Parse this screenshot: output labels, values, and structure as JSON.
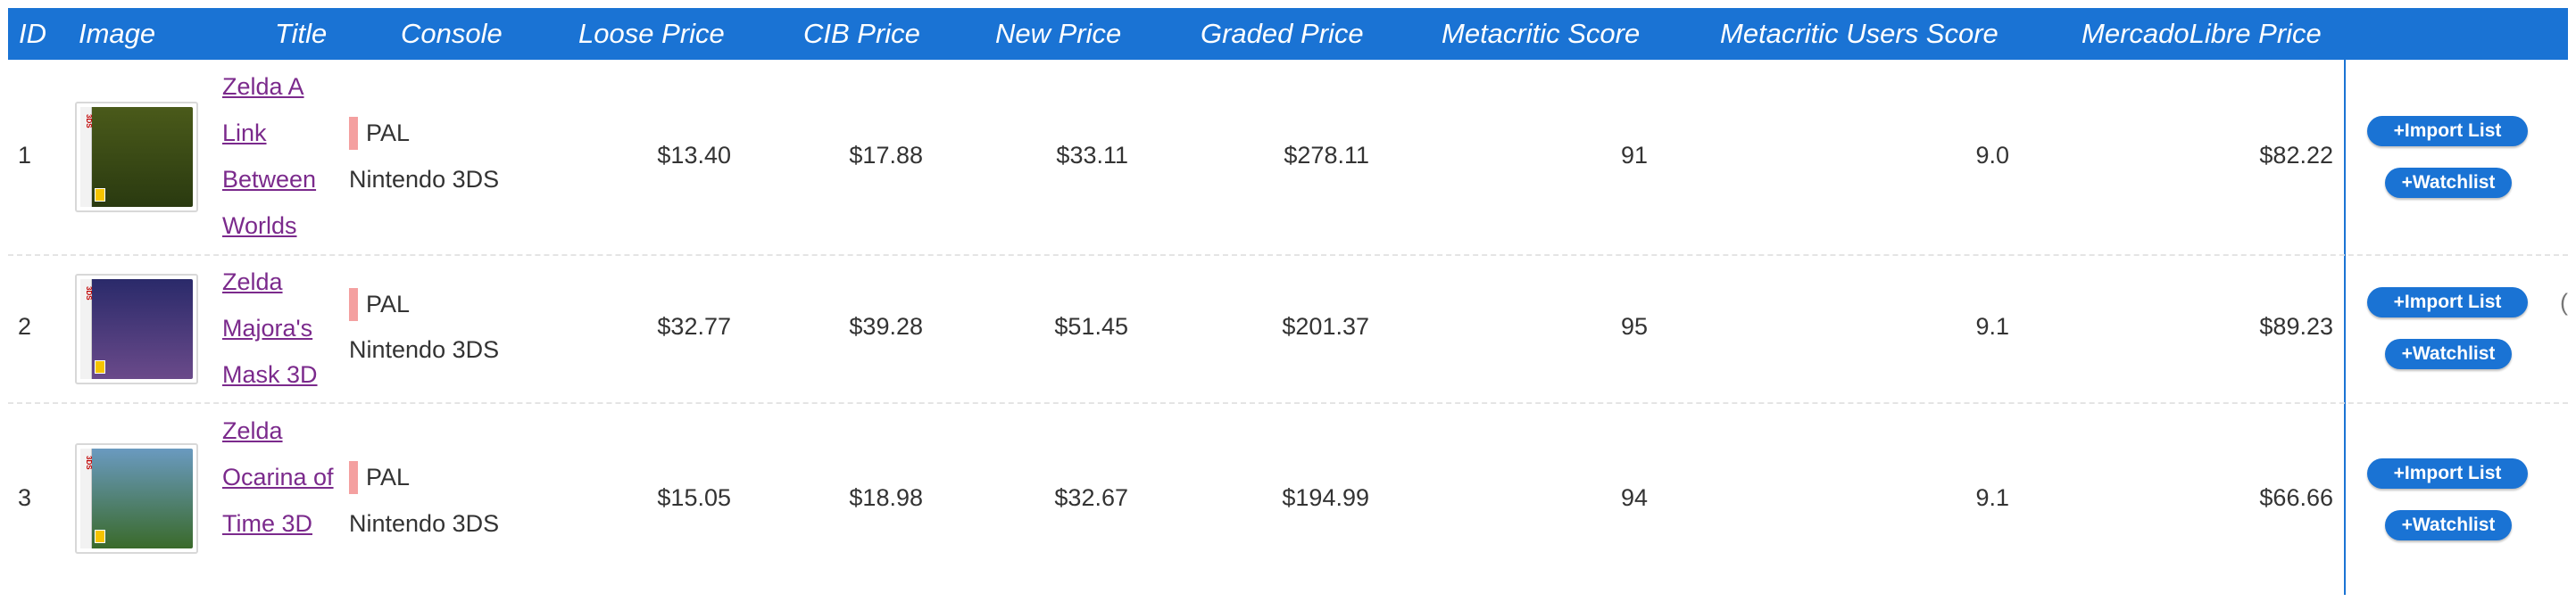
{
  "columns": {
    "id": "ID",
    "image": "Image",
    "title": "Title",
    "console": "Console",
    "loose": "Loose Price",
    "cib": "CIB Price",
    "new": "New Price",
    "graded": "Graded Price",
    "metacritic": "Metacritic Score",
    "metacritic_users": "Metacritic Users Score",
    "mercadolibre": "MercadoLibre Price"
  },
  "rows": [
    {
      "id": "1",
      "title": "Zelda A Link Between Worlds",
      "region": "PAL",
      "console": "Nintendo 3DS",
      "loose": "$13.40",
      "cib": "$17.88",
      "new": "$33.11",
      "graded": "$278.11",
      "metacritic": "91",
      "metacritic_users": "9.0",
      "mercadolibre": "$82.22",
      "import_label": "+Import List",
      "watch_label": "+Watchlist"
    },
    {
      "id": "2",
      "title": "Zelda Majora's Mask 3D",
      "region": "PAL",
      "console": "Nintendo 3DS",
      "loose": "$32.77",
      "cib": "$39.28",
      "new": "$51.45",
      "graded": "$201.37",
      "metacritic": "95",
      "metacritic_users": "9.1",
      "mercadolibre": "$89.23",
      "import_label": "+Import List",
      "watch_label": "+Watchlist"
    },
    {
      "id": "3",
      "title": "Zelda Ocarina of Time 3D",
      "region": "PAL",
      "console": "Nintendo 3DS",
      "loose": "$15.05",
      "cib": "$18.98",
      "new": "$32.67",
      "graded": "$194.99",
      "metacritic": "94",
      "metacritic_users": "9.1",
      "mercadolibre": "$66.66",
      "import_label": "+Import List",
      "watch_label": "+Watchlist"
    }
  ],
  "colors": {
    "header": "#1a73d4",
    "link": "#7b2a8c",
    "region_marker": "#f4a0a0",
    "button": "#1a73d4"
  },
  "covers": [
    {
      "icon": "zelda-link-between-worlds-cover-icon",
      "color_top": "#4a5a1a",
      "color_bottom": "#2a3a10"
    },
    {
      "icon": "zelda-majoras-mask-cover-icon",
      "color_top": "#2a2a6a",
      "color_bottom": "#6a4a8a"
    },
    {
      "icon": "zelda-ocarina-of-time-cover-icon",
      "color_top": "#6a9ac0",
      "color_bottom": "#3a6a2a"
    }
  ]
}
